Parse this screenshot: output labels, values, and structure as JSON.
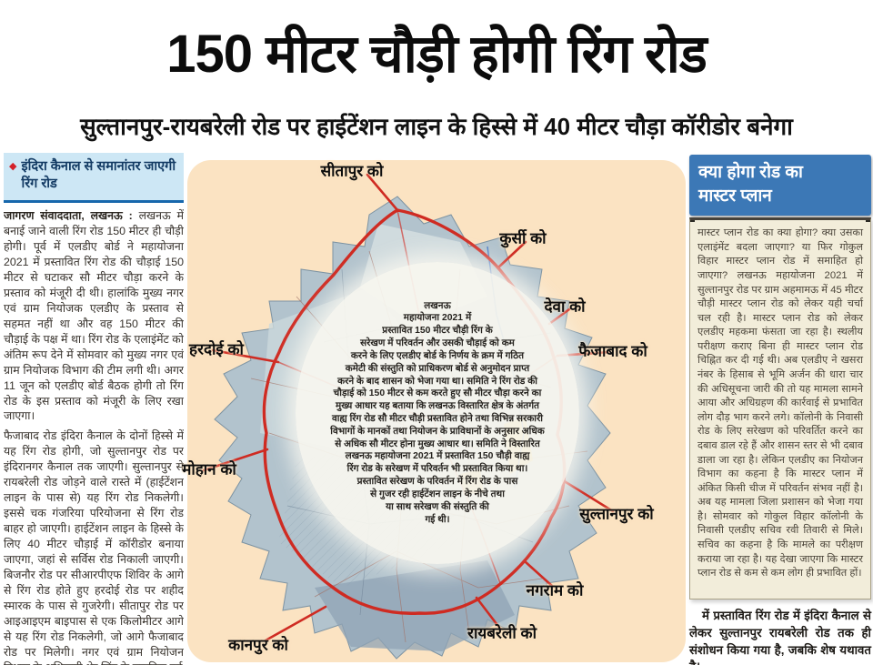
{
  "masthead": {
    "headline": "150 मीटर चौड़ी होगी रिंग रोड",
    "subheadline": "सुल्तानपुर-रायबरेली रोड पर हाईटेंशन लाइन के हिस्से में 40 मीटर चौड़ा कॉरीडोर बनेगा"
  },
  "left_column": {
    "kicker_bullet": "◆",
    "kicker": "इंदिरा कैनाल से समानांतर जाएगी रिंग रोड",
    "byline": "जागरण संवाददाता, लखनऊ :",
    "lead": "लखनऊ में बनाई जाने वाली रिंग रोड 150 मीटर ही चौड़ी होगी। पूर्व में एलडीए बोर्ड ने महायोजना 2021 में प्रस्तावित रिंग रोड की चौड़ाई 150 मीटर से घटाकर सौ मीटर चौड़ा करने के प्रस्ताव को मंजूरी दी थी। हालांकि मुख्य नगर एवं ग्राम नियोजक एलडीए के प्रस्ताव से सहमत नहीं था और वह 150 मीटर की चौड़ाई के पक्ष में था। रिंग रोड के एलाइंमेंट को अंतिम रूप देने में सोमवार को मुख्य नगर एवं ग्राम नियोजक विभाग की टीम लगी थी। अगर 11 जून को एलडीए बोर्ड बैठक होगी तो रिंग रोड के इस प्रस्ताव को मंजूरी के लिए रखा जाएगा।",
    "paragraphs": [
      "फैजाबाद रोड इंदिरा कैनाल के दोनों हिस्से में यह रिंग रोड होगी, जो सुल्तानपुर रोड पर इंदिरानगर कैनाल तक जाएगी। सुल्तानपुर से रायबरेली रोड जोड़ने वाले रास्ते में (हाईटेंशन लाइन के पास से) यह रिंग रोड निकलेगी। इससे चक गंजरिया परियोजना से रिंग रोड बाहर हो जाएगी। हाईटेंशन लाइन के हिस्से के लिए 40 मीटर चौड़ाई में कॉरीडोर बनाया जाएगा, जहां से सर्विस रोड निकाली जाएगी। बिजनौर रोड पर सीआरपीएफ शिविर के आगे से रिंग रोड होते हुए हरदोई रोड पर शहीद स्मारक के पास से गुजरेगी। सीतापुर रोड पर आइआइएम बाइपास से एक किलोमीटर आगे से यह रिंग रोड निकलेगी, जो आगे फैजाबाद रोड पर मिलेगी। नगर एवं ग्राम नियोजन विभाग के अधिकारी शेर सिंह के मुताबिक पूर्व"
    ]
  },
  "map": {
    "center_note_lines": [
      "लखनऊ",
      "महायोजना 2021 में",
      "प्रस्तावित 150 मीटर चौड़ी रिंग के",
      "सरेखण में परिवर्तन और उसकी चौड़ाई को कम",
      "करने के लिए एलडीए बोर्ड के निर्णय के क्रम में गठित",
      "कमेटी की संस्तुति को प्राधिकरण बोर्ड से अनुमोदन प्राप्त",
      "करने के बाद शासन को भेजा गया था। समिति ने रिंग रोड की",
      "चौड़ाई को 150 मीटर से कम करते हुए सौ मीटर चौड़ा करने का",
      "मुख्य आधार यह बताया कि लखनऊ विस्तारित क्षेत्र के अंतर्गत",
      "वाह्य रिंग रोड सौ मीटर चौड़ी प्रस्तावित होने तथा विभिन्न सरकारी",
      "विभागों के मानकों तथा नियोजन के प्राविधानों के अनुसार अधिक",
      "से अधिक सौ मीटर होना मुख्य आधार था। समिति ने विस्तारित",
      "लखनऊ महायोजना 2021 में प्रस्तावित 150 चौड़ी वाह्य",
      "रिंग रोड के सरेखण में परिवर्तन भी प्रस्तावित किया था।",
      "प्रस्तावित सरेखण के परिवर्तन में रिंग रोड के पास",
      "से गुजर रही हाईटेंशन लाइन के नीचे तथा",
      "या साथ सरेखण की संस्तुति की",
      "गई थी।"
    ],
    "labels": [
      "सीतापुर को",
      "कुर्सी को",
      "देवा को",
      "फैजाबाद को",
      "हरदोई को",
      "मोहान को",
      "सुल्तानपुर को",
      "नगराम को",
      "रायबरेली को",
      "कानपुर को"
    ]
  },
  "right_column": {
    "title_line1": "क्या होगा रोड  का",
    "title_line2": "मास्टर प्लान",
    "paragraphs": [
      "मास्टर प्लान रोड का क्या होगा? क्या उसका एलाइंमेंट बदला जाएगा? या फिर गोकुल विहार मास्टर प्लान रोड में समाहित हो जाएगा? लखनऊ महायोजना 2021 में सुल्तानपुर रोड पर ग्राम अहमामऊ में 45 मीटर चौड़ी मास्टर प्लान रोड को लेकर यही चर्चा चल रही है। मास्टर प्लान रोड को लेकर एलडीए महकमा फंसता जा रहा है। स्थलीय परीक्षण कराए बिना ही मास्टर प्लान रोड चिह्नित कर दी गई थी। अब एलडीए ने खसरा नंबर के हिसाब से भूमि अर्जन की धारा चार की अधिसूचना जारी की तो यह मामला सामने आया और अधिग्रहण की कार्रवाई से प्रभावित लोग दौड़ भाग करने लगे। कॉलोनी के निवासी रोड के लिए सरेखण को परिवर्तित करने का दबाव डाल रहे हैं और शासन स्तर से भी दबाव डाला जा रहा है। लेकिन एलडीए का नियोजन विभाग का कहना है कि मास्टर प्लान में अंकित किसी चीज में परिवर्तन संभव नहीं है। अब यह मामला जिला प्रशासन को भेजा गया है। सोमवार को गोकुल विहार कॉलोनी के निवासी एलडीए सचिव रवी तिवारी से मिले। सचिव का कहना है कि मामले का परीक्षण कराया जा रहा है। यह देखा जाएगा कि मास्टर प्लान रोड से कम से कम लोग ही प्रभावित हों।"
    ],
    "continuation": "में प्रस्तावित रिंग रोड में इंदिरा कैनाल से लेकर सुल्तानपुर रायबरेली रोड तक ही संशोधन किया गया है, जबकि शेष यथावत है।"
  },
  "colors": {
    "masterplan_header_blue": "#3c78b6",
    "kicker_bg_blue": "#cde7f5",
    "kicker_underline_blue": "#1767ac",
    "bullet_red": "#d3222a",
    "map_panel_peach": "#fbe3c2",
    "ring_road_red": "#cf2b22",
    "map_land_gray_blue": "#b2c3cd",
    "note_box_cream": "#f2edda"
  }
}
